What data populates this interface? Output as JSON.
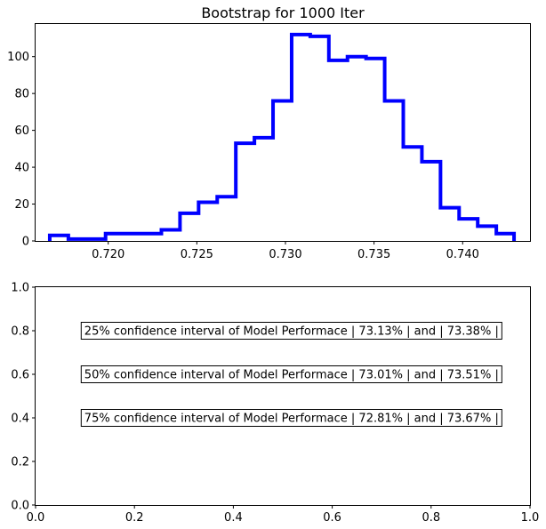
{
  "chart_data": [
    {
      "type": "histogram",
      "title": "Bootstrap for 1000 Iter",
      "xlabel": "",
      "ylabel": "",
      "style": "step",
      "color": "#0000ff",
      "xlim": [
        0.7159,
        0.7438
      ],
      "ylim": [
        0,
        117.7
      ],
      "xticks": [
        0.72,
        0.725,
        0.73,
        0.735,
        0.74
      ],
      "xtick_labels": [
        "0.720",
        "0.725",
        "0.730",
        "0.735",
        "0.740"
      ],
      "yticks": [
        0,
        20,
        40,
        60,
        80,
        100
      ],
      "ytick_labels": [
        "0",
        "20",
        "40",
        "60",
        "80",
        "100"
      ],
      "bin_edges": [
        0.7167,
        0.71775,
        0.7188,
        0.71985,
        0.7209,
        0.72195,
        0.723,
        0.72405,
        0.7251,
        0.72615,
        0.7272,
        0.72825,
        0.7293,
        0.73035,
        0.7314,
        0.73245,
        0.7335,
        0.73455,
        0.7356,
        0.73665,
        0.7377,
        0.73875,
        0.7398,
        0.74085,
        0.7419,
        0.7429
      ],
      "counts": [
        3,
        1,
        1,
        4,
        4,
        4,
        6,
        15,
        21,
        24,
        53,
        56,
        76,
        112,
        111,
        98,
        100,
        99,
        76,
        51,
        43,
        18,
        12,
        8,
        4
      ]
    },
    {
      "type": "text",
      "xlim": [
        0,
        1
      ],
      "ylim": [
        0,
        1
      ],
      "xticks": [
        0.0,
        0.2,
        0.4,
        0.6,
        0.8,
        1.0
      ],
      "xtick_labels": [
        "0.0",
        "0.2",
        "0.4",
        "0.6",
        "0.8",
        "1.0"
      ],
      "yticks": [
        0.0,
        0.2,
        0.4,
        0.6,
        0.8,
        1.0
      ],
      "ytick_labels": [
        "0.0",
        "0.2",
        "0.4",
        "0.6",
        "0.8",
        "1.0"
      ],
      "annotations": [
        {
          "text": "25% confidence interval of Model Performace | 73.13% | and | 73.38% |",
          "x": 0.05,
          "y": 0.8
        },
        {
          "text": "50% confidence interval of Model Performace | 73.01% | and | 73.51% |",
          "x": 0.05,
          "y": 0.6
        },
        {
          "text": "75% confidence interval of Model Performace | 72.81% | and | 73.67% |",
          "x": 0.05,
          "y": 0.4
        }
      ]
    }
  ]
}
